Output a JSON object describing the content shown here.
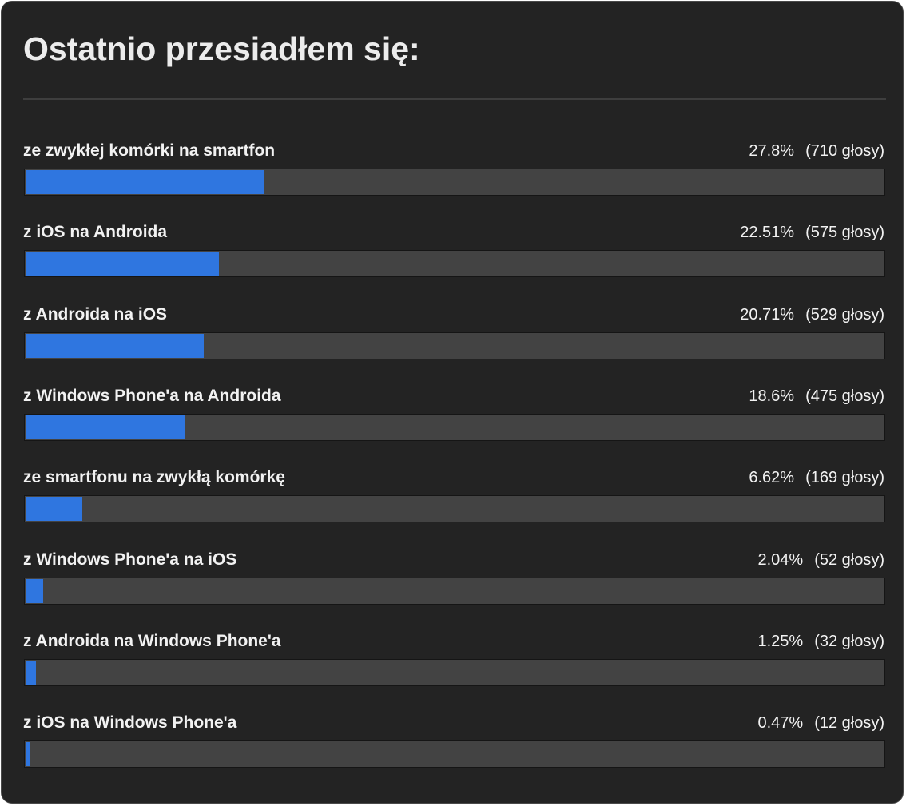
{
  "chart_data": {
    "type": "hbar",
    "title": "Ostatnio przesiadłem się:",
    "categories": [
      "ze zwykłej komórki na smartfon",
      "z iOS na Androida",
      "z Androida na iOS",
      "z Windows Phone'a na Androida",
      "ze smartfonu na zwykłą komórkę",
      "z Windows Phone'a na iOS",
      "z Androida na Windows Phone'a",
      "z iOS na Windows Phone'a"
    ],
    "values": [
      27.8,
      22.51,
      20.71,
      18.6,
      6.62,
      2.04,
      1.25,
      0.47
    ],
    "value_labels": [
      "27.8%",
      "22.51%",
      "20.71%",
      "18.6%",
      "6.62%",
      "2.04%",
      "1.25%",
      "0.47%"
    ],
    "vote_labels": [
      "(710 głosy)",
      "(575 głosy)",
      "(529 głosy)",
      "(475 głosy)",
      "(169 głosy)",
      "(52 głosy)",
      "(32 głosy)",
      "(12 głosy)"
    ],
    "xlim": [
      0,
      100
    ],
    "color": "#2f76e0"
  }
}
